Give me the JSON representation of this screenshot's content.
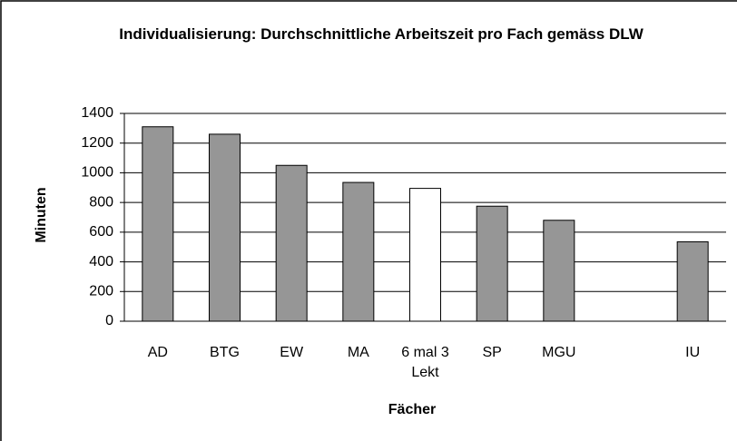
{
  "chart_data": {
    "type": "bar",
    "title": "Individualisierung: Durchschnittliche Arbeitszeit pro Fach  gemäss DLW",
    "x_label": "Fächer",
    "y_label": "Minuten",
    "categories": [
      "AD",
      "BTG",
      "EW",
      "MA",
      "6 mal 3 Lekt",
      "SP",
      "MGU",
      null,
      "IU"
    ],
    "values": [
      1310,
      1260,
      1050,
      935,
      895,
      775,
      680,
      null,
      535
    ],
    "colors": [
      "#969696",
      "#969696",
      "#969696",
      "#969696",
      "#ffffff",
      "#969696",
      "#969696",
      null,
      "#969696"
    ],
    "ylim": [
      0,
      1400
    ],
    "yticks": [
      0,
      200,
      400,
      600,
      800,
      1000,
      1200,
      1400
    ],
    "grid": true
  }
}
